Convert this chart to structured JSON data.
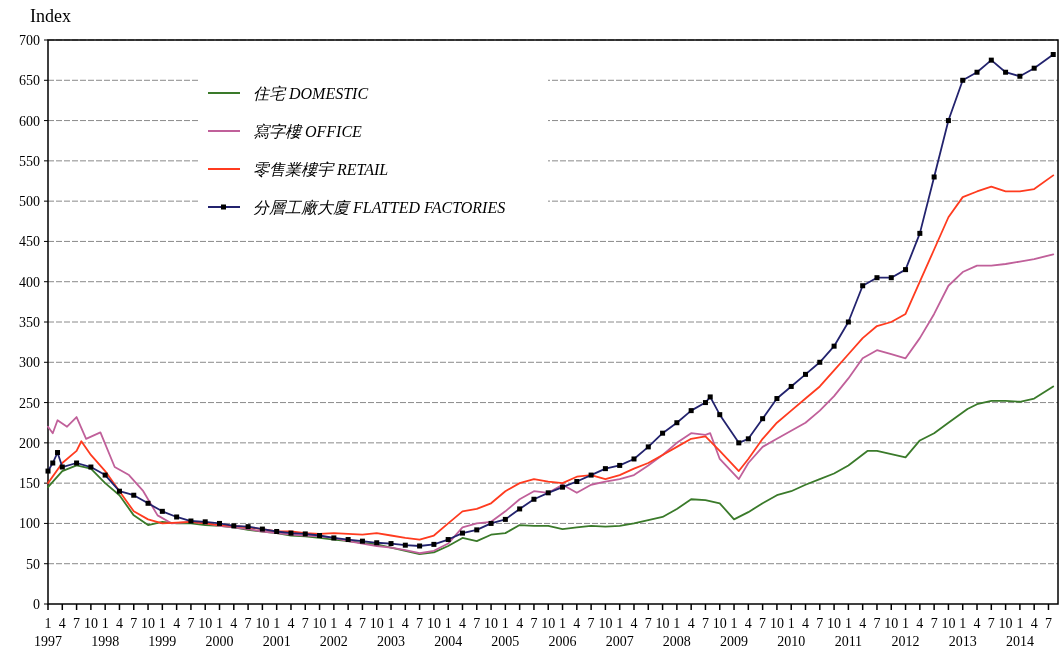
{
  "chart_data": {
    "type": "line",
    "ylabel": "Index",
    "xlim": [
      "1997-01",
      "2014-09"
    ],
    "ylim": [
      0,
      700
    ],
    "yticks": [
      0,
      50,
      100,
      150,
      200,
      250,
      300,
      350,
      400,
      450,
      500,
      550,
      600,
      650,
      700
    ],
    "xticks": [
      {
        "value": "1997-01",
        "label": "1\n1997"
      },
      {
        "value": "1997-04",
        "label": "4"
      },
      {
        "value": "1997-07",
        "label": "7"
      },
      {
        "value": "1997-10",
        "label": "10"
      },
      {
        "value": "1998-01",
        "label": "1\n1998"
      },
      {
        "value": "1998-04",
        "label": "4"
      },
      {
        "value": "1998-07",
        "label": "7"
      },
      {
        "value": "1998-10",
        "label": "10"
      },
      {
        "value": "1999-01",
        "label": "1\n1999"
      },
      {
        "value": "1999-04",
        "label": "4"
      },
      {
        "value": "1999-07",
        "label": "7"
      },
      {
        "value": "1999-10",
        "label": "10"
      },
      {
        "value": "2000-01",
        "label": "1\n2000"
      },
      {
        "value": "2000-04",
        "label": "4"
      },
      {
        "value": "2000-07",
        "label": "7"
      },
      {
        "value": "2000-10",
        "label": "10"
      },
      {
        "value": "2001-01",
        "label": "1\n2001"
      },
      {
        "value": "2001-04",
        "label": "4"
      },
      {
        "value": "2001-07",
        "label": "7"
      },
      {
        "value": "2001-10",
        "label": "10"
      },
      {
        "value": "2002-01",
        "label": "1\n2002"
      },
      {
        "value": "2002-04",
        "label": "4"
      },
      {
        "value": "2002-07",
        "label": "7"
      },
      {
        "value": "2002-10",
        "label": "10"
      },
      {
        "value": "2003-01",
        "label": "1\n2003"
      },
      {
        "value": "2003-04",
        "label": "4"
      },
      {
        "value": "2003-07",
        "label": "7"
      },
      {
        "value": "2003-10",
        "label": "10"
      },
      {
        "value": "2004-01",
        "label": "1\n2004"
      },
      {
        "value": "2004-04",
        "label": "4"
      },
      {
        "value": "2004-07",
        "label": "7"
      },
      {
        "value": "2004-10",
        "label": "10"
      },
      {
        "value": "2005-01",
        "label": "1\n2005"
      },
      {
        "value": "2005-04",
        "label": "4"
      },
      {
        "value": "2005-07",
        "label": "7"
      },
      {
        "value": "2005-10",
        "label": "10"
      },
      {
        "value": "2006-01",
        "label": "1\n2006"
      },
      {
        "value": "2006-04",
        "label": "4"
      },
      {
        "value": "2006-07",
        "label": "7"
      },
      {
        "value": "2006-10",
        "label": "10"
      },
      {
        "value": "2007-01",
        "label": "1\n2007"
      },
      {
        "value": "2007-04",
        "label": "4"
      },
      {
        "value": "2007-07",
        "label": "7"
      },
      {
        "value": "2007-10",
        "label": "10"
      },
      {
        "value": "2008-01",
        "label": "1\n2008"
      },
      {
        "value": "2008-04",
        "label": "4"
      },
      {
        "value": "2008-07",
        "label": "7"
      },
      {
        "value": "2008-10",
        "label": "10"
      },
      {
        "value": "2009-01",
        "label": "1\n2009"
      },
      {
        "value": "2009-04",
        "label": "4"
      },
      {
        "value": "2009-07",
        "label": "7"
      },
      {
        "value": "2009-10",
        "label": "10"
      },
      {
        "value": "2010-01",
        "label": "1\n2010"
      },
      {
        "value": "2010-04",
        "label": "4"
      },
      {
        "value": "2010-07",
        "label": "7"
      },
      {
        "value": "2010-10",
        "label": "10"
      },
      {
        "value": "2011-01",
        "label": "1\n2011"
      },
      {
        "value": "2011-04",
        "label": "4"
      },
      {
        "value": "2011-07",
        "label": "7"
      },
      {
        "value": "2011-10",
        "label": "10"
      },
      {
        "value": "2012-01",
        "label": "1\n2012"
      },
      {
        "value": "2012-04",
        "label": "4"
      },
      {
        "value": "2012-07",
        "label": "7"
      },
      {
        "value": "2012-10",
        "label": "10"
      },
      {
        "value": "2013-01",
        "label": "1\n2013"
      },
      {
        "value": "2013-04",
        "label": "4"
      },
      {
        "value": "2013-07",
        "label": "7"
      },
      {
        "value": "2013-10",
        "label": "10"
      },
      {
        "value": "2014-01",
        "label": "1\n2014"
      },
      {
        "value": "2014-04",
        "label": "4"
      },
      {
        "value": "2014-07",
        "label": "7"
      }
    ],
    "grid": "y",
    "legend": "top left",
    "line_style": "solid",
    "series": [
      {
        "name": "住宅  DOMESTIC",
        "color": "#3a7a2a",
        "marker": "none",
        "x": [
          "1997-01",
          "1997-04",
          "1997-07",
          "1997-10",
          "1998-01",
          "1998-04",
          "1998-07",
          "1998-10",
          "1999-01",
          "1999-04",
          "1999-07",
          "1999-10",
          "2000-01",
          "2000-04",
          "2000-07",
          "2000-10",
          "2001-01",
          "2001-04",
          "2001-07",
          "2001-10",
          "2002-01",
          "2002-04",
          "2002-07",
          "2002-10",
          "2003-01",
          "2003-04",
          "2003-07",
          "2003-10",
          "2004-01",
          "2004-04",
          "2004-07",
          "2004-10",
          "2005-01",
          "2005-04",
          "2005-07",
          "2005-10",
          "2006-01",
          "2006-04",
          "2006-07",
          "2006-10",
          "2007-01",
          "2007-04",
          "2007-07",
          "2007-10",
          "2008-01",
          "2008-04",
          "2008-07",
          "2008-10",
          "2009-01",
          "2009-04",
          "2009-07",
          "2009-10",
          "2010-01",
          "2010-04",
          "2010-07",
          "2010-10",
          "2011-01",
          "2011-05",
          "2011-07",
          "2011-10",
          "2012-01",
          "2012-04",
          "2012-07",
          "2012-10",
          "2013-02",
          "2013-04",
          "2013-07",
          "2013-10",
          "2014-01",
          "2014-04",
          "2014-08"
        ],
        "values": [
          145,
          165,
          172,
          168,
          150,
          135,
          110,
          98,
          102,
          100,
          100,
          98,
          97,
          95,
          92,
          90,
          88,
          85,
          84,
          82,
          80,
          78,
          76,
          74,
          70,
          66,
          62,
          64,
          72,
          82,
          78,
          86,
          88,
          98,
          97,
          97,
          93,
          95,
          97,
          96,
          97,
          100,
          104,
          108,
          118,
          130,
          129,
          125,
          105,
          114,
          125,
          135,
          140,
          148,
          155,
          162,
          172,
          190,
          190,
          186,
          182,
          203,
          212,
          225,
          242,
          248,
          252,
          252,
          251,
          255,
          270
        ]
      },
      {
        "name": "寫字樓  OFFICE",
        "color": "#c0609a",
        "marker": "none",
        "x": [
          "1997-01",
          "1997-02",
          "1997-03",
          "1997-05",
          "1997-07",
          "1997-09",
          "1997-12",
          "1998-03",
          "1998-06",
          "1998-09",
          "1998-12",
          "1999-03",
          "1999-07",
          "1999-10",
          "2000-01",
          "2000-04",
          "2000-07",
          "2000-10",
          "2001-01",
          "2001-04",
          "2001-07",
          "2001-10",
          "2002-01",
          "2002-04",
          "2002-07",
          "2002-10",
          "2003-01",
          "2003-04",
          "2003-07",
          "2003-10",
          "2004-01",
          "2004-04",
          "2004-07",
          "2004-10",
          "2005-01",
          "2005-04",
          "2005-07",
          "2005-10",
          "2006-01",
          "2006-04",
          "2006-07",
          "2006-10",
          "2007-01",
          "2007-04",
          "2007-07",
          "2007-10",
          "2008-01",
          "2008-04",
          "2008-07",
          "2008-08",
          "2008-10",
          "2009-02",
          "2009-04",
          "2009-07",
          "2009-10",
          "2010-01",
          "2010-04",
          "2010-07",
          "2010-10",
          "2011-01",
          "2011-04",
          "2011-07",
          "2011-10",
          "2012-01",
          "2012-04",
          "2012-07",
          "2012-10",
          "2013-01",
          "2013-04",
          "2013-07",
          "2013-10",
          "2014-01",
          "2014-04",
          "2014-08"
        ],
        "values": [
          220,
          212,
          228,
          220,
          232,
          205,
          213,
          170,
          160,
          140,
          110,
          100,
          102,
          100,
          97,
          95,
          93,
          90,
          88,
          86,
          85,
          84,
          82,
          78,
          75,
          72,
          70,
          67,
          63,
          66,
          75,
          95,
          100,
          102,
          115,
          130,
          140,
          138,
          148,
          138,
          148,
          152,
          155,
          160,
          172,
          185,
          200,
          212,
          210,
          212,
          180,
          155,
          175,
          195,
          205,
          215,
          225,
          240,
          258,
          280,
          305,
          315,
          310,
          305,
          330,
          360,
          395,
          412,
          420,
          420,
          422,
          425,
          428,
          434
        ]
      },
      {
        "name": "零售業樓宇  RETAIL",
        "color": "#ff3b1f",
        "marker": "none",
        "x": [
          "1997-01",
          "1997-04",
          "1997-07",
          "1997-08",
          "1997-10",
          "1998-01",
          "1998-04",
          "1998-07",
          "1998-10",
          "1999-01",
          "1999-04",
          "1999-07",
          "1999-10",
          "2000-01",
          "2000-04",
          "2000-07",
          "2000-10",
          "2001-01",
          "2001-04",
          "2001-07",
          "2001-10",
          "2002-01",
          "2002-04",
          "2002-07",
          "2002-10",
          "2003-01",
          "2003-04",
          "2003-07",
          "2003-10",
          "2004-01",
          "2004-04",
          "2004-07",
          "2004-10",
          "2005-01",
          "2005-04",
          "2005-07",
          "2005-10",
          "2006-01",
          "2006-04",
          "2006-07",
          "2006-10",
          "2007-01",
          "2007-04",
          "2007-07",
          "2007-10",
          "2008-01",
          "2008-04",
          "2008-07",
          "2008-10",
          "2009-02",
          "2009-04",
          "2009-07",
          "2009-10",
          "2010-01",
          "2010-04",
          "2010-07",
          "2010-10",
          "2011-01",
          "2011-04",
          "2011-07",
          "2011-10",
          "2012-01",
          "2012-04",
          "2012-07",
          "2012-10",
          "2013-01",
          "2013-04",
          "2013-07",
          "2013-10",
          "2014-01",
          "2014-04",
          "2014-08"
        ],
        "values": [
          150,
          175,
          190,
          202,
          185,
          165,
          140,
          115,
          105,
          100,
          101,
          102,
          100,
          98,
          97,
          95,
          93,
          90,
          90,
          88,
          87,
          88,
          87,
          86,
          88,
          85,
          82,
          80,
          85,
          100,
          115,
          118,
          125,
          140,
          150,
          155,
          152,
          150,
          158,
          160,
          155,
          160,
          168,
          175,
          185,
          195,
          205,
          208,
          190,
          165,
          180,
          205,
          225,
          240,
          255,
          270,
          290,
          310,
          330,
          345,
          350,
          360,
          400,
          440,
          480,
          505,
          512,
          518,
          512,
          512,
          515,
          532
        ]
      },
      {
        "name": "分層工廠大廈  FLATTED FACTORIES",
        "color": "#23236e",
        "marker": "square",
        "x": [
          "1997-01",
          "1997-02",
          "1997-03",
          "1997-04",
          "1997-07",
          "1997-10",
          "1998-01",
          "1998-04",
          "1998-07",
          "1998-10",
          "1999-01",
          "1999-04",
          "1999-07",
          "1999-10",
          "2000-01",
          "2000-04",
          "2000-07",
          "2000-10",
          "2001-01",
          "2001-04",
          "2001-07",
          "2001-10",
          "2002-01",
          "2002-04",
          "2002-07",
          "2002-10",
          "2003-01",
          "2003-04",
          "2003-07",
          "2003-10",
          "2004-01",
          "2004-04",
          "2004-07",
          "2004-10",
          "2005-01",
          "2005-04",
          "2005-07",
          "2005-10",
          "2006-01",
          "2006-04",
          "2006-07",
          "2006-10",
          "2007-01",
          "2007-04",
          "2007-07",
          "2007-10",
          "2008-01",
          "2008-04",
          "2008-07",
          "2008-08",
          "2008-10",
          "2009-02",
          "2009-04",
          "2009-07",
          "2009-10",
          "2010-01",
          "2010-04",
          "2010-07",
          "2010-10",
          "2011-01",
          "2011-04",
          "2011-07",
          "2011-10",
          "2012-01",
          "2012-04",
          "2012-07",
          "2012-10",
          "2013-01",
          "2013-04",
          "2013-07",
          "2013-10",
          "2014-01",
          "2014-04",
          "2014-08"
        ],
        "values": [
          165,
          175,
          188,
          170,
          175,
          170,
          160,
          140,
          135,
          125,
          115,
          108,
          103,
          102,
          100,
          97,
          96,
          93,
          90,
          88,
          87,
          85,
          82,
          80,
          78,
          76,
          75,
          73,
          72,
          74,
          80,
          88,
          92,
          100,
          105,
          118,
          130,
          138,
          145,
          152,
          160,
          168,
          172,
          180,
          195,
          212,
          225,
          240,
          250,
          257,
          235,
          200,
          205,
          230,
          255,
          270,
          285,
          300,
          320,
          350,
          395,
          405,
          405,
          415,
          460,
          530,
          600,
          650,
          660,
          675,
          660,
          655,
          665,
          682
        ]
      }
    ]
  }
}
